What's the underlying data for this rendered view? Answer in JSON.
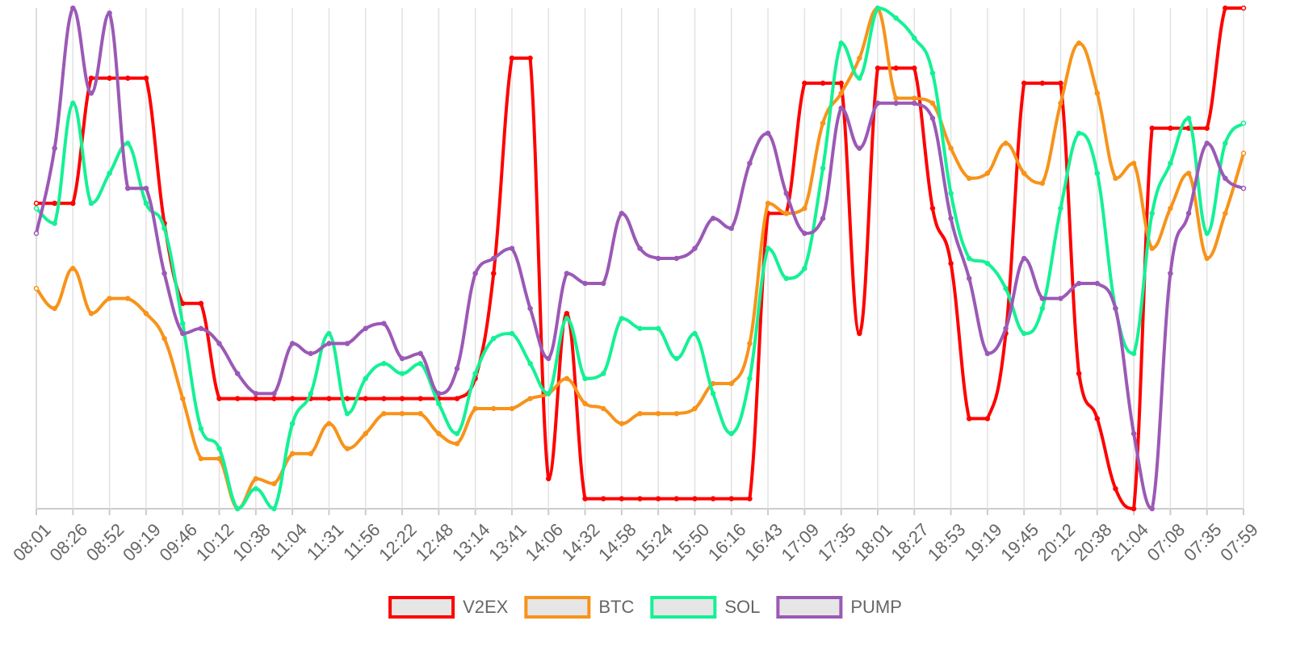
{
  "chart_data": {
    "type": "line",
    "categories": [
      "08:01",
      null,
      "08:26",
      null,
      "08:52",
      null,
      "09:19",
      null,
      "09:46",
      null,
      "10:12",
      null,
      "10:38",
      null,
      "11:04",
      null,
      "11:31",
      null,
      "11:56",
      null,
      "12:22",
      null,
      "12:48",
      null,
      "13:14",
      null,
      "13:41",
      null,
      "14:06",
      null,
      "14:32",
      null,
      "14:58",
      null,
      "15:24",
      null,
      "15:50",
      null,
      "16:16",
      null,
      "16:43",
      null,
      "17:09",
      null,
      "17:35",
      null,
      "18:01",
      null,
      "18:27",
      null,
      "18:53",
      null,
      "19:19",
      null,
      "19:45",
      null,
      "20:12",
      null,
      "20:38",
      null,
      "21:04",
      null,
      "07:08",
      null,
      "07:35",
      null,
      "07:59"
    ],
    "ylim": [
      0,
      100
    ],
    "grid": true,
    "legend": "bottom",
    "series": [
      {
        "name": "V2EX",
        "color": "#ff0000",
        "values": [
          61,
          61,
          61,
          86,
          86,
          86,
          86,
          57,
          41,
          41,
          22,
          22,
          22,
          22,
          22,
          22,
          22,
          22,
          22,
          22,
          22,
          22,
          22,
          22,
          26,
          47,
          90,
          90,
          6,
          39,
          2,
          2,
          2,
          2,
          2,
          2,
          2,
          2,
          2,
          2,
          59,
          59,
          85,
          85,
          85,
          35,
          88,
          88,
          88,
          60,
          49,
          18,
          18,
          35,
          85,
          85,
          85,
          27,
          18,
          4,
          0,
          76,
          76,
          76,
          76,
          100,
          100
        ]
      },
      {
        "name": "BTC",
        "color": "#f7931a",
        "values": [
          44,
          40,
          48,
          39,
          42,
          42,
          39,
          34,
          22,
          10,
          10,
          0,
          6,
          5,
          11,
          11,
          17,
          12,
          15,
          19,
          19,
          19,
          15,
          13,
          20,
          20,
          20,
          22,
          23,
          26,
          21,
          20,
          17,
          19,
          19,
          19,
          20,
          25,
          25,
          33,
          61,
          59,
          60,
          77,
          83,
          90,
          100,
          82,
          82,
          81,
          72,
          66,
          67,
          73,
          67,
          65,
          81,
          93,
          83,
          66,
          69,
          52,
          60,
          67,
          50,
          59,
          71
        ]
      },
      {
        "name": "SOL",
        "color": "#14f195",
        "values": [
          60,
          57,
          81,
          61,
          67,
          73,
          61,
          56,
          37,
          16,
          12,
          0,
          4,
          0,
          17,
          23,
          35,
          19,
          26,
          29,
          27,
          29,
          21,
          15,
          27,
          34,
          35,
          29,
          23,
          38,
          26,
          27,
          38,
          36,
          36,
          30,
          35,
          23,
          15,
          26,
          52,
          46,
          48,
          68,
          93,
          86,
          100,
          98,
          94,
          87,
          63,
          50,
          49,
          44,
          35,
          40,
          60,
          75,
          67,
          40,
          31,
          59,
          69,
          78,
          55,
          73,
          77
        ]
      },
      {
        "name": "PUMP",
        "color": "#9b59b6",
        "values": [
          55,
          72,
          100,
          83,
          99,
          64,
          64,
          47,
          35,
          36,
          33,
          27,
          23,
          23,
          33,
          31,
          33,
          33,
          36,
          37,
          30,
          31,
          23,
          28,
          47,
          50,
          52,
          40,
          30,
          47,
          45,
          45,
          59,
          52,
          50,
          50,
          52,
          58,
          56,
          69,
          75,
          63,
          55,
          58,
          80,
          72,
          81,
          81,
          81,
          78,
          58,
          46,
          31,
          36,
          50,
          42,
          42,
          45,
          45,
          40,
          15,
          0,
          47,
          59,
          73,
          66,
          64
        ]
      }
    ]
  }
}
